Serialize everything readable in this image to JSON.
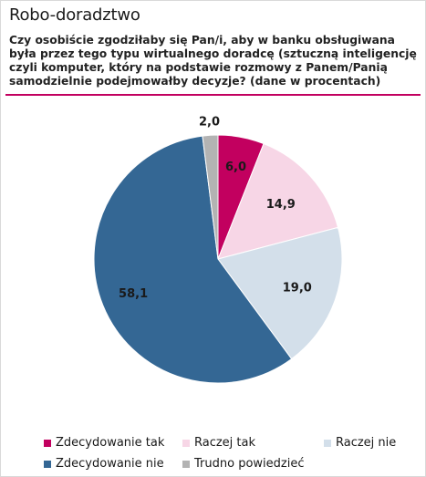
{
  "header": {
    "title": "Robo-doradztwo",
    "subtitle": "Czy osobiście zgodziłaby się Pan/i, aby w banku obsługiwana była przez tego typu wirtualnego doradcę (sztuczną inteligencję czyli komputer, który na podstawie rozmowy z Panem/Panią samodzielnie podejmowałby decyzje? (dane w procentach)"
  },
  "colors": {
    "accent_rule": "#c2005f"
  },
  "chart_data": {
    "type": "pie",
    "title": "Robo-doradztwo",
    "unit": "%",
    "start_angle_deg": 0,
    "direction": "clockwise",
    "legend_placement": "bottom",
    "slices": [
      {
        "label": "Zdecydowanie tak",
        "value": 6.0,
        "value_label": "6,0",
        "color": "#c2005f",
        "label_color": "#1a1a1a"
      },
      {
        "label": "Raczej tak",
        "value": 14.9,
        "value_label": "14,9",
        "color": "#f7d6e6",
        "label_color": "#1a1a1a"
      },
      {
        "label": "Raczej nie",
        "value": 19.0,
        "value_label": "19,0",
        "color": "#d3dfea",
        "label_color": "#1a1a1a"
      },
      {
        "label": "Zdecydowanie nie",
        "value": 58.1,
        "value_label": "58,1",
        "color": "#346794",
        "label_color": "#1a1a1a"
      },
      {
        "label": "Trudno powiedzieć",
        "value": 2.0,
        "value_label": "2,0",
        "color": "#b3b3b3",
        "label_color": "#1a1a1a"
      }
    ]
  }
}
